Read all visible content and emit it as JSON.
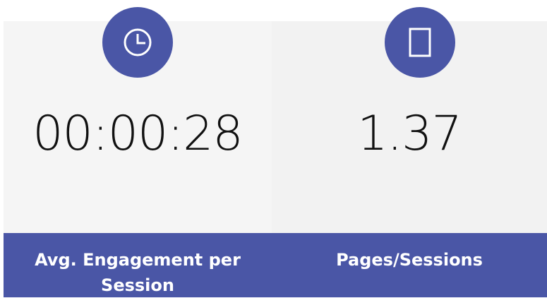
{
  "cards": [
    {
      "value": "00:00:28",
      "label": "Avg. Engagement per Session"
    },
    {
      "value": 1.37,
      "label": "Pages/Sessions"
    }
  ]
}
